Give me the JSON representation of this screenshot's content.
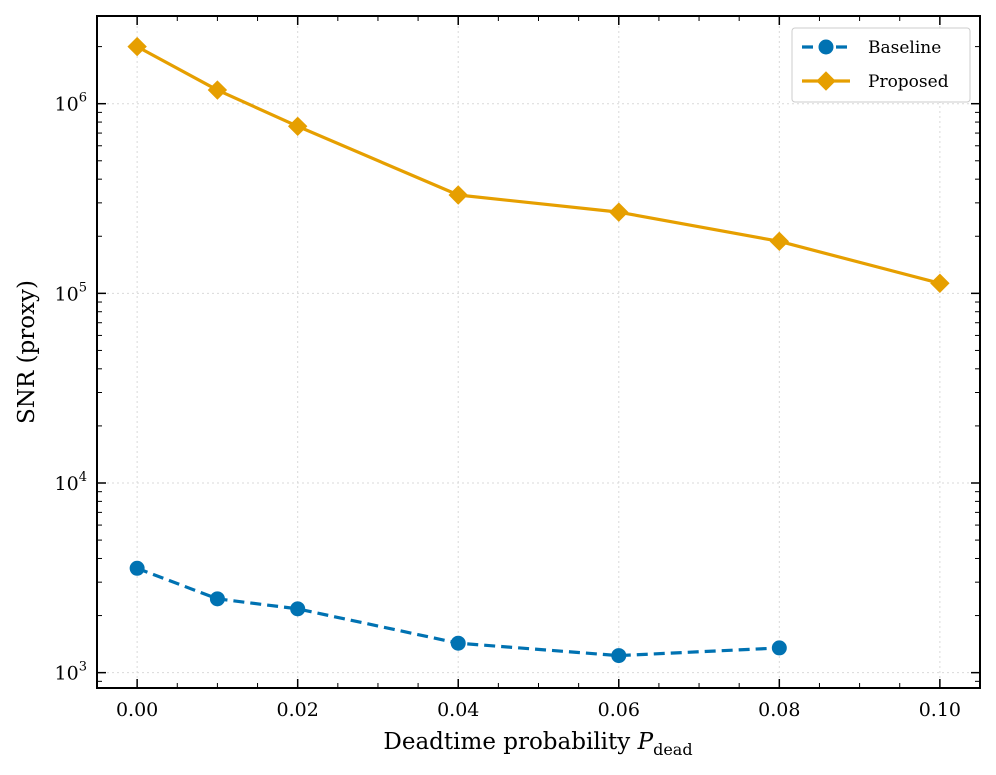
{
  "chart_data": {
    "type": "line",
    "title": "",
    "xlabel": "Deadtime probability",
    "xlabel_math": "P",
    "xlabel_subscript": "dead",
    "ylabel": "SNR (proxy)",
    "yscale": "log",
    "xlim": [
      -0.005,
      0.105
    ],
    "ylim": [
      830,
      2900000
    ],
    "grid": true,
    "legend_position": "top-right",
    "x_ticks": [
      0.0,
      0.02,
      0.04,
      0.06,
      0.08,
      0.1
    ],
    "x_tick_labels": [
      "0.00",
      "0.02",
      "0.04",
      "0.06",
      "0.08",
      "0.10"
    ],
    "y_ticks": [
      {
        "value": 1000,
        "base": "10",
        "exp": "3"
      },
      {
        "value": 10000,
        "base": "10",
        "exp": "4"
      },
      {
        "value": 100000,
        "base": "10",
        "exp": "5"
      },
      {
        "value": 1000000,
        "base": "10",
        "exp": "6"
      }
    ],
    "series": [
      {
        "name": "Baseline",
        "color": "#0072b2",
        "line_style": "dashed",
        "marker": "circle",
        "x": [
          0.0,
          0.01,
          0.02,
          0.04,
          0.06,
          0.08
        ],
        "values": [
          3550,
          2450,
          2170,
          1430,
          1230,
          1350
        ]
      },
      {
        "name": "Proposed",
        "color": "#e69f00",
        "line_style": "solid",
        "marker": "diamond",
        "x": [
          0.0,
          0.01,
          0.02,
          0.04,
          0.06,
          0.08,
          0.1
        ],
        "values": [
          2000000,
          1180000,
          760000,
          330000,
          268000,
          188000,
          113000
        ]
      }
    ]
  }
}
